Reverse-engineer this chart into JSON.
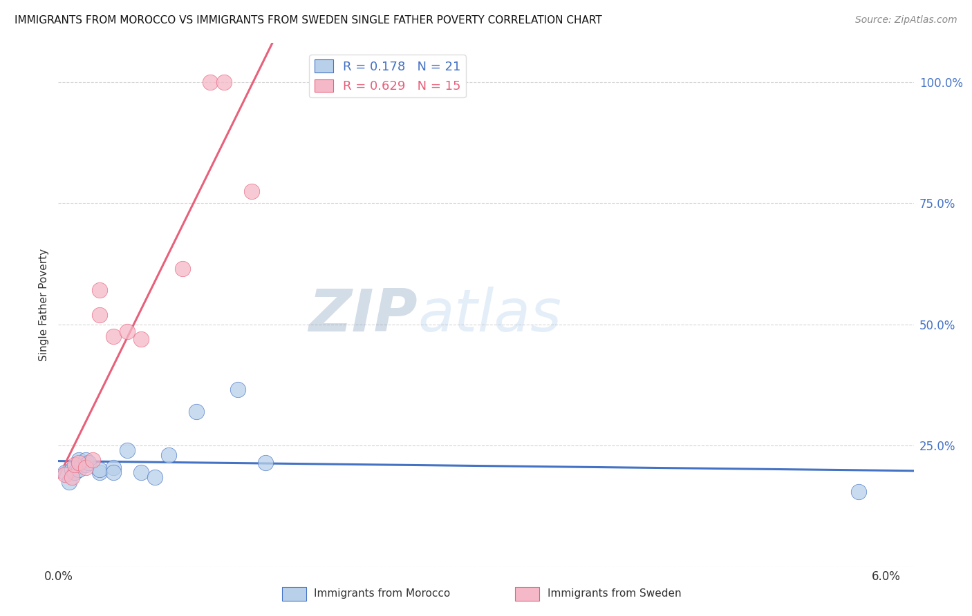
{
  "title": "IMMIGRANTS FROM MOROCCO VS IMMIGRANTS FROM SWEDEN SINGLE FATHER POVERTY CORRELATION CHART",
  "source": "Source: ZipAtlas.com",
  "ylabel": "Single Father Poverty",
  "watermark_zip": "ZIP",
  "watermark_atlas": "atlas",
  "legend_morocco": "Immigrants from Morocco",
  "legend_sweden": "Immigrants from Sweden",
  "morocco_R": 0.178,
  "morocco_N": 21,
  "sweden_R": 0.629,
  "sweden_N": 15,
  "morocco_color": "#b8d0ea",
  "sweden_color": "#f5b8c8",
  "morocco_line_color": "#4472c4",
  "sweden_line_color": "#e8607a",
  "morocco_edge_color": "#4472c4",
  "sweden_edge_color": "#e8607a",
  "morocco_scatter": [
    [
      0.0005,
      0.195
    ],
    [
      0.0008,
      0.175
    ],
    [
      0.001,
      0.2
    ],
    [
      0.0012,
      0.195
    ],
    [
      0.0015,
      0.2
    ],
    [
      0.0015,
      0.22
    ],
    [
      0.002,
      0.21
    ],
    [
      0.002,
      0.22
    ],
    [
      0.0022,
      0.215
    ],
    [
      0.003,
      0.195
    ],
    [
      0.003,
      0.2
    ],
    [
      0.004,
      0.205
    ],
    [
      0.004,
      0.195
    ],
    [
      0.005,
      0.24
    ],
    [
      0.006,
      0.195
    ],
    [
      0.007,
      0.185
    ],
    [
      0.008,
      0.23
    ],
    [
      0.01,
      0.32
    ],
    [
      0.013,
      0.365
    ],
    [
      0.015,
      0.215
    ],
    [
      0.058,
      0.155
    ]
  ],
  "sweden_scatter": [
    [
      0.0005,
      0.19
    ],
    [
      0.001,
      0.185
    ],
    [
      0.0012,
      0.21
    ],
    [
      0.0015,
      0.215
    ],
    [
      0.002,
      0.205
    ],
    [
      0.0025,
      0.22
    ],
    [
      0.003,
      0.57
    ],
    [
      0.003,
      0.52
    ],
    [
      0.004,
      0.475
    ],
    [
      0.005,
      0.485
    ],
    [
      0.006,
      0.47
    ],
    [
      0.009,
      0.615
    ],
    [
      0.011,
      1.0
    ],
    [
      0.012,
      1.0
    ],
    [
      0.014,
      0.775
    ]
  ],
  "xlim": [
    0.0,
    0.062
  ],
  "ylim": [
    0.0,
    1.08
  ],
  "yticks": [
    0.0,
    0.25,
    0.5,
    0.75,
    1.0
  ],
  "ytick_labels": [
    "",
    "25.0%",
    "50.0%",
    "75.0%",
    "100.0%"
  ],
  "xticks": [
    0.0,
    0.01,
    0.02,
    0.03,
    0.04,
    0.05,
    0.06
  ],
  "xtick_labels": [
    "0.0%",
    "",
    "",
    "",
    "",
    "",
    "6.0%"
  ],
  "grid_color": "#cccccc",
  "background_color": "#ffffff"
}
